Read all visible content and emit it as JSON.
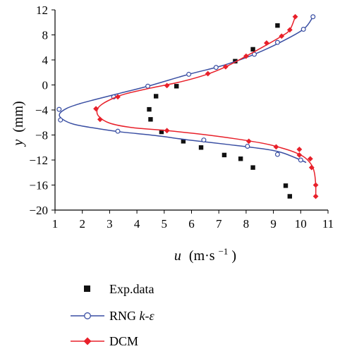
{
  "chart_data": {
    "type": "line",
    "xlabel_var": "u",
    "xlabel_unit": "(m·s",
    "xlabel_exp": "−1",
    "xlabel_close": ")",
    "ylabel_var": "y",
    "ylabel_unit": "(mm)",
    "xlim": [
      1,
      11
    ],
    "ylim": [
      -20,
      12
    ],
    "xticks": [
      "1",
      "2",
      "3",
      "4",
      "5",
      "6",
      "7",
      "8",
      "9",
      "10",
      "11"
    ],
    "yticks": [
      "12",
      "8",
      "4",
      "0",
      "−4",
      "−8",
      "−12",
      "−16",
      "−20"
    ],
    "grid": false,
    "legend_position": "below",
    "legend": {
      "exp": "Exp.data",
      "rng_prefix": "RNG ",
      "rng_k": "k",
      "rng_dash": "-",
      "rng_eps": "ε",
      "dcm": "DCM"
    },
    "colors": {
      "exp": "#111111",
      "rng": "#3a4fa3",
      "dcm": "#e8202a"
    },
    "series": [
      {
        "key": "exp",
        "style": "markers",
        "marker": "square",
        "points": [
          [
            9.15,
            9.5
          ],
          [
            8.25,
            5.7
          ],
          [
            7.6,
            3.8
          ],
          [
            5.45,
            -0.2
          ],
          [
            4.7,
            -1.8
          ],
          [
            4.45,
            -3.9
          ],
          [
            4.5,
            -5.5
          ],
          [
            4.9,
            -7.5
          ],
          [
            5.7,
            -9.0
          ],
          [
            6.35,
            -10.0
          ],
          [
            7.2,
            -11.2
          ],
          [
            7.8,
            -11.8
          ],
          [
            8.25,
            -13.2
          ],
          [
            9.45,
            -16.1
          ],
          [
            9.6,
            -17.8
          ]
        ]
      },
      {
        "key": "rng",
        "style": "line-markers",
        "marker": "circle",
        "curve": [
          [
            10.45,
            10.9
          ],
          [
            10.1,
            8.9
          ],
          [
            9.2,
            6.7
          ],
          [
            8.3,
            4.9
          ],
          [
            7.5,
            3.6
          ],
          [
            6.9,
            2.8
          ],
          [
            5.9,
            1.7
          ],
          [
            4.4,
            -0.2
          ],
          [
            3.4,
            -1.3
          ],
          [
            2.5,
            -2.3
          ],
          [
            1.9,
            -3.0
          ],
          [
            1.45,
            -3.7
          ],
          [
            1.17,
            -4.6
          ],
          [
            1.25,
            -5.4
          ],
          [
            1.7,
            -6.3
          ],
          [
            2.6,
            -7.0
          ],
          [
            3.4,
            -7.5
          ],
          [
            4.7,
            -8.1
          ],
          [
            5.9,
            -8.8
          ],
          [
            7.3,
            -9.5
          ],
          [
            8.6,
            -10.2
          ],
          [
            9.3,
            -10.8
          ],
          [
            10.0,
            -12.0
          ],
          [
            10.2,
            -12.4
          ]
        ],
        "points": [
          [
            10.45,
            10.9
          ],
          [
            10.1,
            8.9
          ],
          [
            9.15,
            6.8
          ],
          [
            8.3,
            4.9
          ],
          [
            6.9,
            2.8
          ],
          [
            5.9,
            1.7
          ],
          [
            4.4,
            -0.2
          ],
          [
            3.15,
            -1.9
          ],
          [
            1.15,
            -3.9
          ],
          [
            1.2,
            -5.6
          ],
          [
            3.3,
            -7.4
          ],
          [
            6.45,
            -8.8
          ],
          [
            8.05,
            -9.8
          ],
          [
            9.15,
            -11.1
          ],
          [
            10.0,
            -12.0
          ]
        ]
      },
      {
        "key": "dcm",
        "style": "line-markers",
        "marker": "diamond",
        "curve": [
          [
            9.8,
            10.9
          ],
          [
            9.6,
            8.8
          ],
          [
            9.3,
            7.8
          ],
          [
            8.75,
            6.4
          ],
          [
            8.0,
            4.6
          ],
          [
            7.25,
            2.9
          ],
          [
            6.5,
            1.6
          ],
          [
            5.6,
            0.5
          ],
          [
            4.5,
            -0.5
          ],
          [
            3.6,
            -1.4
          ],
          [
            3.2,
            -2.0
          ],
          [
            2.75,
            -3.0
          ],
          [
            2.55,
            -3.9
          ],
          [
            2.6,
            -5.0
          ],
          [
            3.0,
            -6.1
          ],
          [
            3.8,
            -6.8
          ],
          [
            5.1,
            -7.3
          ],
          [
            6.4,
            -7.9
          ],
          [
            7.6,
            -8.6
          ],
          [
            8.7,
            -9.4
          ],
          [
            9.4,
            -10.2
          ],
          [
            9.8,
            -10.8
          ],
          [
            10.15,
            -11.6
          ],
          [
            10.4,
            -12.8
          ],
          [
            10.5,
            -14.0
          ],
          [
            10.55,
            -16.0
          ],
          [
            10.55,
            -17.8
          ]
        ],
        "points": [
          [
            9.8,
            10.9
          ],
          [
            9.6,
            8.8
          ],
          [
            9.3,
            7.8
          ],
          [
            8.75,
            6.7
          ],
          [
            8.0,
            4.6
          ],
          [
            7.25,
            2.9
          ],
          [
            6.6,
            1.8
          ],
          [
            5.1,
            -0.1
          ],
          [
            3.3,
            -1.9
          ],
          [
            2.5,
            -3.8
          ],
          [
            2.65,
            -5.5
          ],
          [
            5.1,
            -7.3
          ],
          [
            8.1,
            -9.0
          ],
          [
            9.1,
            -9.9
          ],
          [
            9.95,
            -10.3
          ],
          [
            9.95,
            -11.2
          ],
          [
            10.35,
            -11.8
          ],
          [
            10.4,
            -13.2
          ],
          [
            10.55,
            -16.0
          ],
          [
            10.55,
            -17.8
          ]
        ]
      }
    ]
  }
}
